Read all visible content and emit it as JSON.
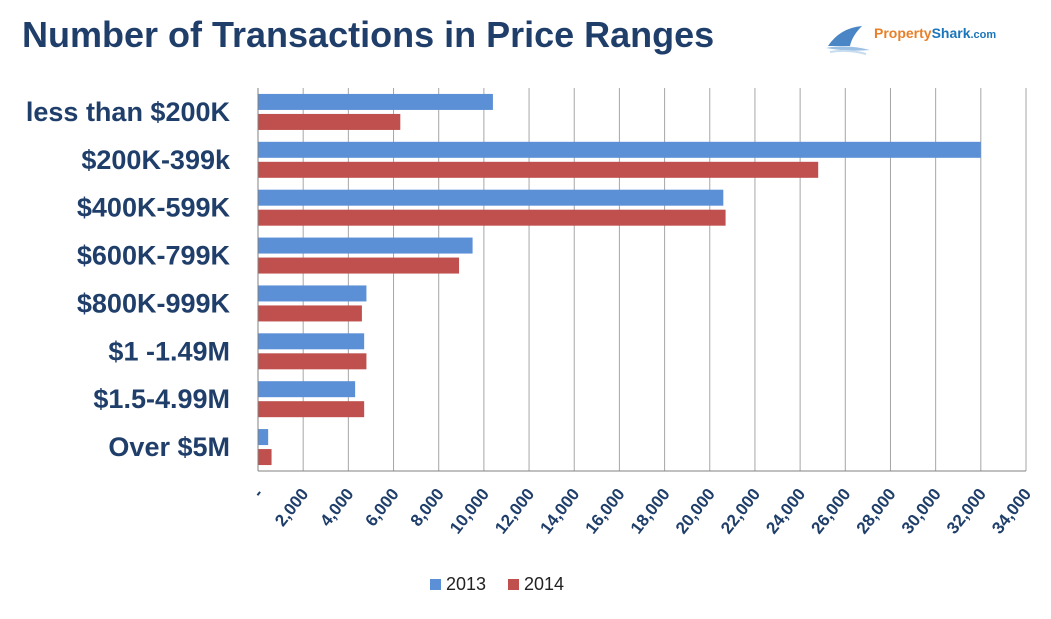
{
  "header": {
    "title": "Number of Transactions in Price Ranges",
    "logo_text_main": "Property",
    "logo_text_accent": "Shark",
    "logo_text_suffix": ".com"
  },
  "colors": {
    "series_2013": "#5b8fd6",
    "series_2014": "#c0504d",
    "title": "#1f3e6a"
  },
  "chart_data": {
    "type": "bar",
    "orientation": "horizontal",
    "title": "Number of Transactions in Price Ranges",
    "categories": [
      "less than $200K",
      "$200K-399k",
      "$400K-599K",
      "$600K-799K",
      "$800K-999K",
      "$1 -1.49M",
      "$1.5-4.99M",
      "Over $5M"
    ],
    "series": [
      {
        "name": "2013",
        "values": [
          10400,
          32000,
          20600,
          9500,
          4800,
          4700,
          4300,
          450
        ]
      },
      {
        "name": "2014",
        "values": [
          6300,
          24800,
          20700,
          8900,
          4600,
          4800,
          4700,
          600
        ]
      }
    ],
    "xlim": [
      0,
      34000
    ],
    "x_ticks": [
      0,
      2000,
      4000,
      6000,
      8000,
      10000,
      12000,
      14000,
      16000,
      18000,
      20000,
      22000,
      24000,
      26000,
      28000,
      30000,
      32000,
      34000
    ],
    "x_tick_labels": [
      "-",
      "2,000",
      "4,000",
      "6,000",
      "8,000",
      "10,000",
      "12,000",
      "14,000",
      "16,000",
      "18,000",
      "20,000",
      "22,000",
      "24,000",
      "26,000",
      "28,000",
      "30,000",
      "32,000",
      "34,000"
    ],
    "grid": "vertical",
    "legend": "bottom-center"
  }
}
